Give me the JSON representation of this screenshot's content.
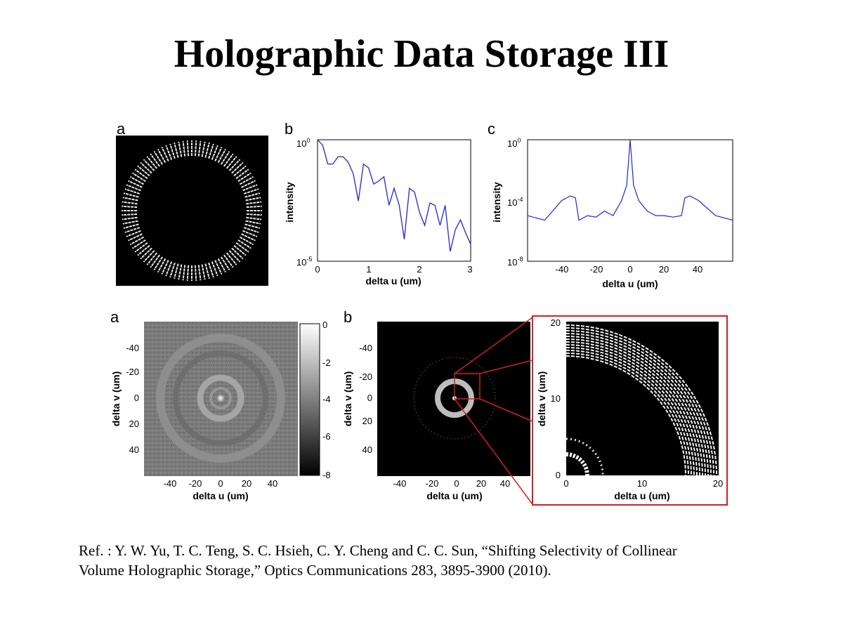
{
  "slide": {
    "title": "Holographic Data Storage III",
    "reference_line1": "Ref. : Y. W. Yu, T. C. Teng, S. C. Hsieh, C. Y. Cheng and C. C. Sun, “Shifting Selectivity of Collinear",
    "reference_line2": "Volume Holographic Storage,” Optics Communications 283, 3895-3900 (2010)."
  },
  "top_row": {
    "panel_a": {
      "letter": "a"
    },
    "panel_b": {
      "letter": "b",
      "ylabel": "intensity",
      "xlabel": "delta u (um)",
      "xticks": [
        "0",
        "1",
        "2",
        "3"
      ],
      "yticks": [
        {
          "base": "10",
          "exp": "0"
        },
        {
          "base": "10",
          "exp": "-5"
        }
      ]
    },
    "panel_c": {
      "letter": "c",
      "ylabel": "intensity",
      "xlabel": "delta u (um)",
      "xticks": [
        "-40",
        "-20",
        "0",
        "20",
        "40"
      ],
      "yticks": [
        {
          "base": "10",
          "exp": "0"
        },
        {
          "base": "10",
          "exp": "-4"
        },
        {
          "base": "10",
          "exp": "-8"
        }
      ]
    }
  },
  "bottom_row": {
    "panel_a": {
      "letter": "a",
      "xlabel": "delta u (um)",
      "ylabel": "delta v (um)",
      "xticks": [
        "-40",
        "-20",
        "0",
        "20",
        "40"
      ],
      "yticks": [
        "-40",
        "-20",
        "0",
        "20",
        "40"
      ],
      "colorbar_ticks": [
        "0",
        "-2",
        "-4",
        "-6",
        "-8"
      ]
    },
    "panel_b": {
      "letter": "b",
      "xlabel": "delta u (um)",
      "ylabel": "delta v (um)",
      "xticks": [
        "-40",
        "-20",
        "0",
        "20",
        "40"
      ],
      "yticks": [
        "-40",
        "-20",
        "0",
        "20",
        "40"
      ]
    },
    "inset": {
      "xlabel": "delta u (um)",
      "ylabel": "delta v (um)",
      "xticks": [
        "0",
        "10",
        "20"
      ],
      "yticks": [
        "20",
        "10",
        "0"
      ]
    }
  },
  "chart_data": [
    {
      "type": "line",
      "panel": "top b",
      "xlabel": "delta u (um)",
      "ylabel": "intensity",
      "xlim": [
        0,
        3
      ],
      "ylim": [
        1e-05,
        1
      ],
      "yscale": "log",
      "x": [
        0,
        0.1,
        0.2,
        0.3,
        0.4,
        0.5,
        0.6,
        0.7,
        0.8,
        0.9,
        1.0,
        1.1,
        1.2,
        1.3,
        1.4,
        1.5,
        1.6,
        1.7,
        1.8,
        1.9,
        2.0,
        2.1,
        2.2,
        2.3,
        2.4,
        2.5,
        2.6,
        2.7,
        2.8,
        2.9,
        3.0
      ],
      "y": [
        1,
        0.6,
        0.1,
        0.1,
        0.2,
        0.2,
        0.12,
        0.04,
        0.003,
        0.1,
        0.07,
        0.015,
        0.02,
        0.03,
        0.002,
        0.01,
        0.002,
        8e-05,
        0.01,
        0.007,
        0.001,
        0.0003,
        0.0025,
        0.002,
        0.0003,
        0.002,
        2.5e-05,
        0.0002,
        0.0005,
        0.00015,
        5e-05
      ]
    },
    {
      "type": "line",
      "panel": "top c",
      "xlabel": "delta u (um)",
      "ylabel": "intensity",
      "xlim": [
        -60,
        60
      ],
      "ylim": [
        1e-08,
        1
      ],
      "yscale": "log",
      "x": [
        -60,
        -50,
        -40,
        -35,
        -32,
        -30,
        -25,
        -20,
        -15,
        -10,
        -5,
        -2,
        0,
        2,
        5,
        10,
        15,
        20,
        25,
        30,
        32,
        35,
        40,
        50,
        60
      ],
      "y": [
        1e-05,
        5e-06,
        0.0001,
        0.0002,
        0.00015,
        5e-06,
        1e-05,
        8e-06,
        2e-05,
        1e-05,
        0.0001,
        0.001,
        1,
        0.001,
        0.0001,
        2e-05,
        1e-05,
        1e-05,
        8e-06,
        1e-05,
        0.00015,
        0.0002,
        0.0001,
        1e-05,
        5e-06
      ]
    }
  ]
}
